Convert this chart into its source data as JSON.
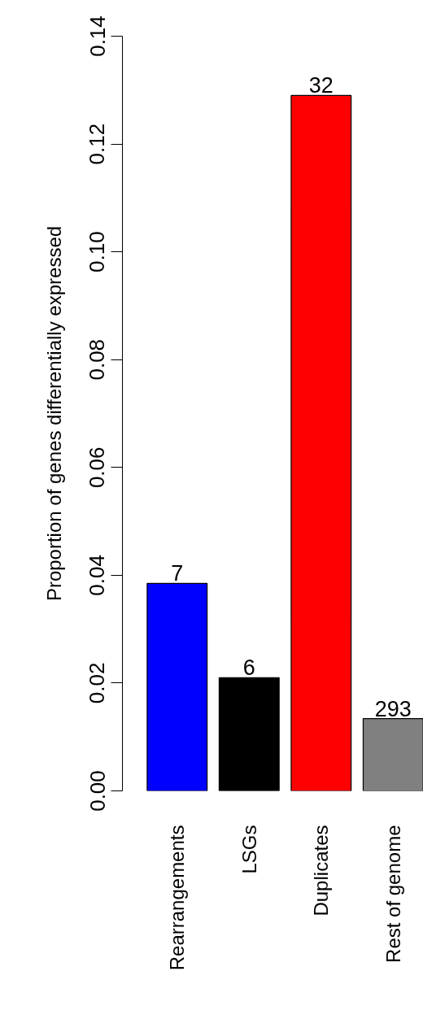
{
  "chart_data": {
    "type": "bar",
    "ylabel": "Proportion of genes differentially expressed",
    "categories": [
      "Rearrangements",
      "LSGs",
      "Duplicates",
      "Rest of genome"
    ],
    "values": [
      0.0385,
      0.021,
      0.129,
      0.0134
    ],
    "colors": [
      "#0000ff",
      "#000000",
      "#ff0000",
      "#808080"
    ],
    "annotations": [
      {
        "text": "7",
        "x": "Rearrangements",
        "y": 0.0385
      },
      {
        "text": "6",
        "x": "LSGs",
        "y": 0.021
      },
      {
        "text": "32",
        "x": "Duplicates",
        "y": 0.129
      },
      {
        "text": "293",
        "x": "Rest of genome",
        "y": 0.0134
      }
    ],
    "ylim": [
      0,
      0.14
    ],
    "yticks": [
      {
        "value": 0,
        "label": "0.00"
      },
      0.02,
      0.04,
      0.06,
      0.08,
      {
        "value": 0.1,
        "label": "0.10"
      },
      0.12,
      0.14
    ],
    "grid": false
  }
}
